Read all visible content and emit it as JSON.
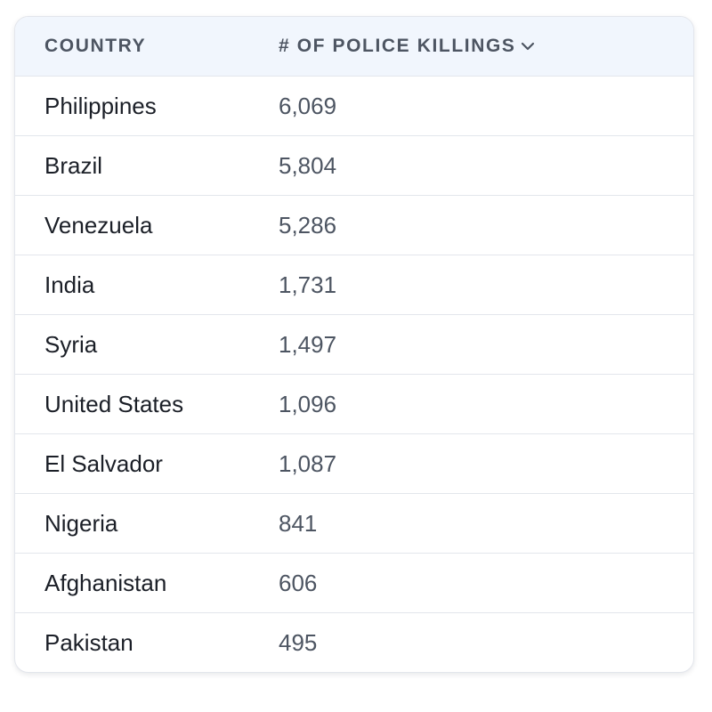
{
  "table": {
    "headers": {
      "country": "COUNTRY",
      "value": "# OF POLICE KILLINGS"
    },
    "sort_icon": "chevron-down-icon",
    "rows": [
      {
        "country": "Philippines",
        "value": "6,069"
      },
      {
        "country": "Brazil",
        "value": "5,804"
      },
      {
        "country": "Venezuela",
        "value": "5,286"
      },
      {
        "country": "India",
        "value": "1,731"
      },
      {
        "country": "Syria",
        "value": "1,497"
      },
      {
        "country": "United States",
        "value": "1,096"
      },
      {
        "country": "El Salvador",
        "value": "1,087"
      },
      {
        "country": "Nigeria",
        "value": "841"
      },
      {
        "country": "Afghanistan",
        "value": "606"
      },
      {
        "country": "Pakistan",
        "value": "495"
      }
    ]
  }
}
